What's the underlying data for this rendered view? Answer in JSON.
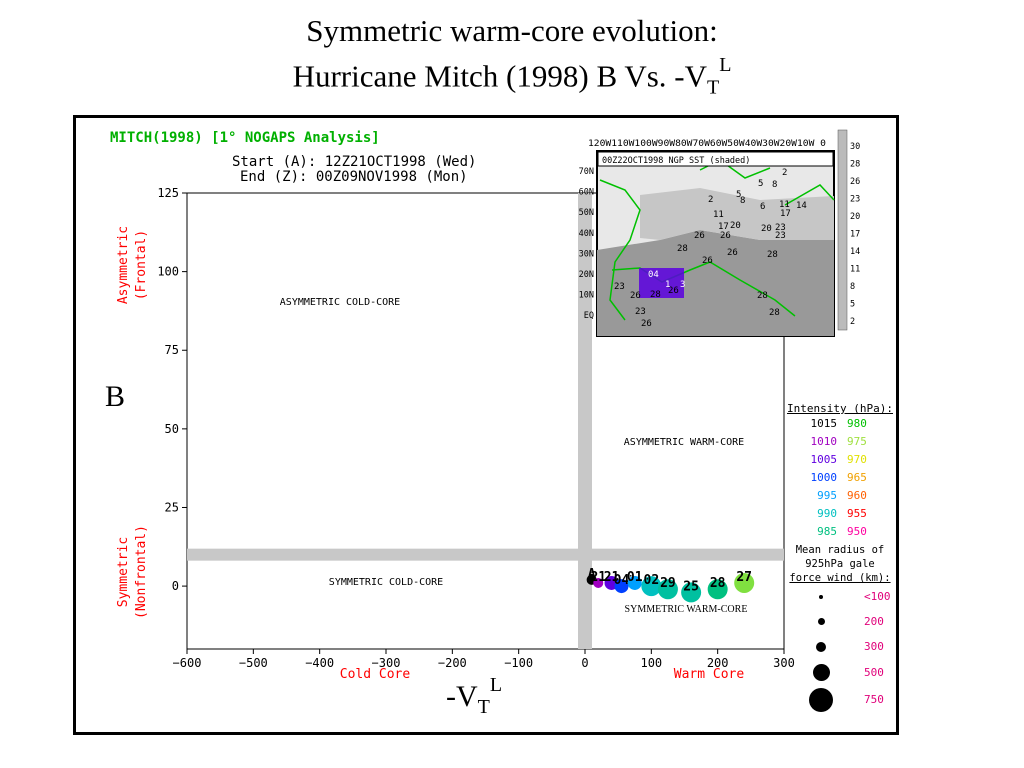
{
  "slide": {
    "title_line1": "Symmetric warm-core evolution:",
    "title_line2_main": "Hurricane Mitch (1998)    B Vs. -V",
    "title_line2_sub": "T",
    "title_line2_sup": "L",
    "left_label": "B",
    "bottom_label_main": "-V",
    "bottom_label_sub": "T",
    "bottom_label_sup": "L"
  },
  "plot_header": {
    "storm": "MITCH(1998) [1° NOGAPS Analysis]",
    "start": "Start (A): 12Z21OCT1998 (Wed)",
    "end": "End (Z): 00Z09NOV1998 (Mon)"
  },
  "quadrants": {
    "upper_left": "ASYMMETRIC COLD-CORE",
    "upper_right": "ASYMMETRIC WARM-CORE",
    "lower_left": "SYMMETRIC COLD-CORE",
    "lower_right": "SYMMETRIC WARM-CORE"
  },
  "inset": {
    "caption": "00Z22OCT1998 NGP SST (shaded)",
    "lon_labels": "120W110W100W90W80W70W60W50W40W30W20W10W 0",
    "lat_labels": [
      "70N",
      "60N",
      "50N",
      "40N",
      "30N",
      "20N",
      "10N",
      "EQ"
    ],
    "colorbar_labels": [
      "30",
      "28",
      "26",
      "23",
      "20",
      "17",
      "14",
      "11",
      "8",
      "5",
      "2"
    ],
    "map_numbers": [
      "2",
      "5",
      "8",
      "5",
      "8",
      "2",
      "6",
      "11",
      "14",
      "11",
      "17",
      "20",
      "17",
      "23",
      "26",
      "20",
      "23",
      "26",
      "28",
      "26",
      "26",
      "28",
      "23",
      "26",
      "28",
      "26",
      "23",
      "28",
      "28",
      "26",
      "04",
      "1",
      "3"
    ]
  },
  "legend": {
    "intensity_title": "Intensity (hPa):",
    "intensity_rows": [
      {
        "left": "1015",
        "left_color": "#000000",
        "right": "980",
        "right_color": "#00c000"
      },
      {
        "left": "1010",
        "left_color": "#a000c0",
        "right": "975",
        "right_color": "#a0e040"
      },
      {
        "left": "1005",
        "left_color": "#6000e0",
        "right": "970",
        "right_color": "#e0e000"
      },
      {
        "left": "1000",
        "left_color": "#0040ff",
        "right": "965",
        "right_color": "#f0a000"
      },
      {
        "left": "995",
        "left_color": "#00a0ff",
        "right": "960",
        "right_color": "#ff6000"
      },
      {
        "left": "990",
        "left_color": "#00c0c0",
        "right": "955",
        "right_color": "#ff0000"
      },
      {
        "left": "985",
        "left_color": "#00c080",
        "right": "950",
        "right_color": "#ff00a0"
      }
    ],
    "radius_title_1": "Mean radius of",
    "radius_title_2": "925hPa gale",
    "radius_title_3": "force wind (km):",
    "radius_rows": [
      "<100",
      "200",
      "300",
      "500",
      "750"
    ],
    "radius_color": "#e0007a"
  },
  "chart_data": {
    "type": "scatter",
    "xlabel_left": "Cold Core",
    "xlabel_right": "Warm Core",
    "ylabel_top_1": "Asymmetric",
    "ylabel_top_2": "(Frontal)",
    "ylabel_bottom_1": "Symmetric",
    "ylabel_bottom_2": "(Nonfrontal)",
    "xlim": [
      -600,
      300
    ],
    "ylim": [
      -20,
      125
    ],
    "xticks": [
      -600,
      -500,
      -400,
      -300,
      -200,
      -100,
      0,
      100,
      200,
      300
    ],
    "yticks": [
      0,
      25,
      50,
      75,
      100,
      125
    ],
    "threshold_x": 0,
    "threshold_y": 10,
    "accent_color": "#ff0000",
    "header_color": "#00b000",
    "points": [
      {
        "x": 10,
        "y": 2,
        "label": "A",
        "color": "#000000",
        "size": 1
      },
      {
        "x": 20,
        "y": 1,
        "label": "21",
        "color": "#a000c0",
        "size": 1
      },
      {
        "x": 40,
        "y": 1,
        "label": "21",
        "color": "#6000e0",
        "size": 2
      },
      {
        "x": 55,
        "y": 0,
        "label": "04",
        "color": "#0040ff",
        "size": 2
      },
      {
        "x": 75,
        "y": 1,
        "label": "01",
        "color": "#00a0ff",
        "size": 2
      },
      {
        "x": 100,
        "y": 0,
        "label": "02",
        "color": "#00c0c0",
        "size": 3
      },
      {
        "x": 125,
        "y": -1,
        "label": "29",
        "color": "#00c0a0",
        "size": 3
      },
      {
        "x": 160,
        "y": -2,
        "label": "25",
        "color": "#00c0a0",
        "size": 3
      },
      {
        "x": 200,
        "y": -1,
        "label": "28",
        "color": "#00c080",
        "size": 3
      },
      {
        "x": 240,
        "y": 1,
        "label": "27",
        "color": "#80e040",
        "size": 3
      }
    ]
  }
}
